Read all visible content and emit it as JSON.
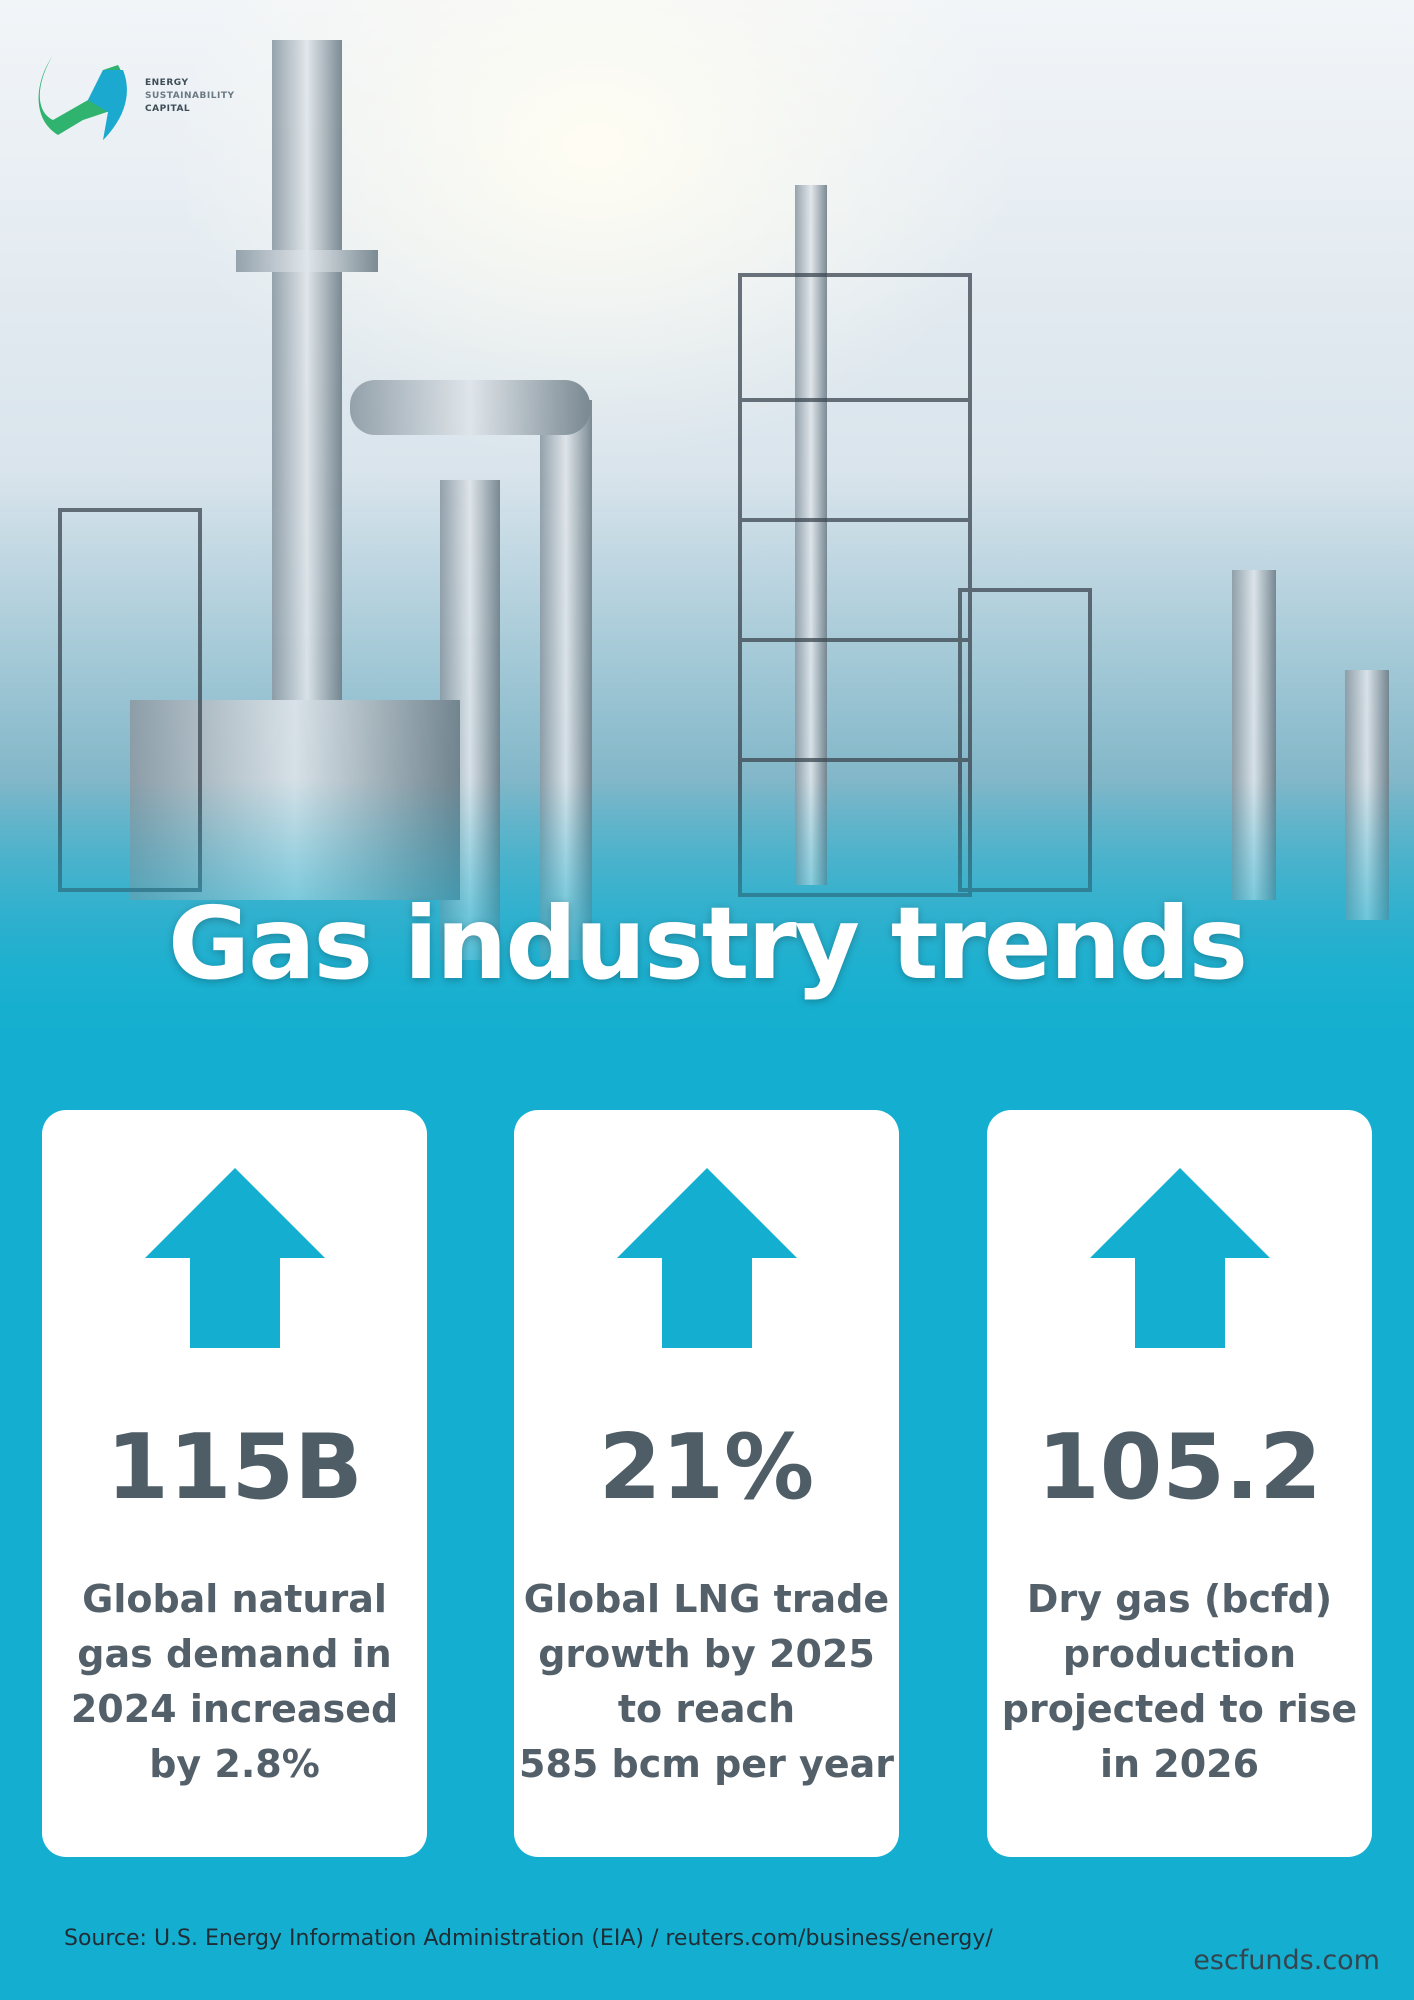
{
  "logo": {
    "lines": [
      "ENERGY",
      "SUSTAINABILITY",
      "CAPITAL"
    ]
  },
  "title": "Gas industry trends",
  "cards": [
    {
      "value": "115B",
      "description": [
        "Global natural",
        "gas demand in",
        "2024 increased",
        "by 2.8%"
      ]
    },
    {
      "value": "21%",
      "description": [
        "Global LNG trade",
        "growth by 2025",
        "to reach",
        "585 bcm per year"
      ]
    },
    {
      "value": "105.2",
      "description": [
        "Dry gas (bcfd)",
        "production",
        "projected to rise",
        "in 2026"
      ]
    }
  ],
  "source": "Source: U.S. Energy Information Administration (EIA) / reuters.com/business/energy/",
  "website": "escfunds.com"
}
